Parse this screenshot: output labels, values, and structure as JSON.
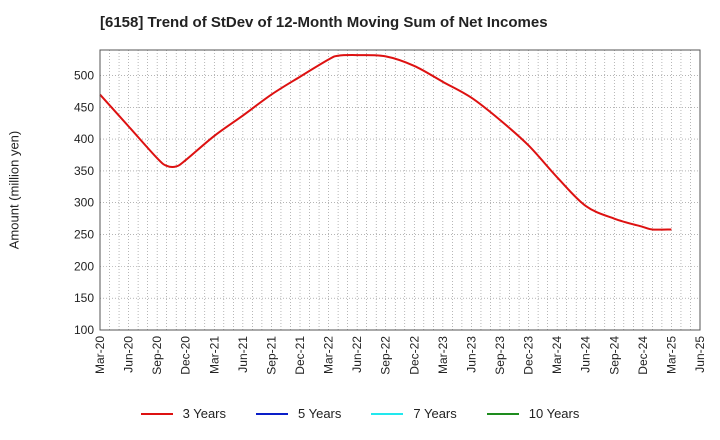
{
  "chart_data": {
    "type": "line",
    "title": "[6158]  Trend of StDev of 12-Month Moving Sum of Net Incomes",
    "ylabel": "Amount (million yen)",
    "xlabel": "",
    "ylim": [
      100,
      540
    ],
    "yticks": [
      100,
      150,
      200,
      250,
      300,
      350,
      400,
      450,
      500
    ],
    "xticks": [
      "Mar-20",
      "Jun-20",
      "Sep-20",
      "Dec-20",
      "Mar-21",
      "Jun-21",
      "Sep-21",
      "Dec-21",
      "Mar-22",
      "Jun-22",
      "Sep-22",
      "Dec-22",
      "Mar-23",
      "Jun-23",
      "Sep-23",
      "Dec-23",
      "Mar-24",
      "Jun-24",
      "Sep-24",
      "Dec-24",
      "Mar-25",
      "Jun-25"
    ],
    "grid": true,
    "legend_position": "bottom",
    "series": [
      {
        "name": "3 Years",
        "color": "#dd1111",
        "points": [
          [
            "Mar-20",
            470
          ],
          [
            "Jun-20",
            420
          ],
          [
            "Sep-20",
            370
          ],
          [
            "Oct-20",
            358
          ],
          [
            "Nov-20",
            357
          ],
          [
            "Dec-20",
            367
          ],
          [
            "Mar-21",
            405
          ],
          [
            "Jun-21",
            437
          ],
          [
            "Sep-21",
            470
          ],
          [
            "Dec-21",
            498
          ],
          [
            "Mar-22",
            525
          ],
          [
            "Apr-22",
            531
          ],
          [
            "Jun-22",
            532
          ],
          [
            "Sep-22",
            530
          ],
          [
            "Dec-22",
            515
          ],
          [
            "Mar-23",
            490
          ],
          [
            "Jun-23",
            465
          ],
          [
            "Sep-23",
            430
          ],
          [
            "Dec-23",
            390
          ],
          [
            "Mar-24",
            340
          ],
          [
            "Jun-24",
            295
          ],
          [
            "Sep-24",
            275
          ],
          [
            "Dec-24",
            262
          ],
          [
            "Jan-25",
            258
          ],
          [
            "Mar-25",
            258
          ]
        ]
      }
    ]
  },
  "legend": [
    {
      "label": "3 Years",
      "color": "#dd1111"
    },
    {
      "label": "5 Years",
      "color": "#0a1ec8"
    },
    {
      "label": "7 Years",
      "color": "#22e8ee"
    },
    {
      "label": "10 Years",
      "color": "#1e8c1e"
    }
  ]
}
